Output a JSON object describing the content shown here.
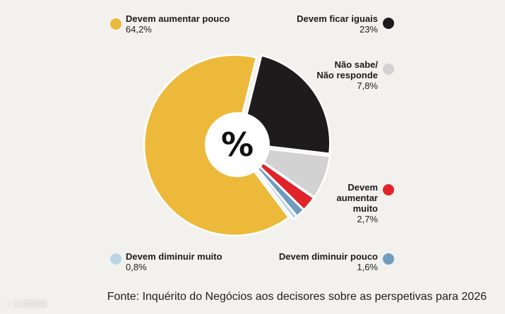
{
  "chart_data": {
    "type": "pie",
    "center_label": "%",
    "slices": [
      {
        "name": "Devem aumentar pouco",
        "value": 64.2,
        "value_text": "64,2%",
        "color": "#ecb93a"
      },
      {
        "name": "Devem ficar iguais",
        "value": 23,
        "value_text": "23%",
        "color": "#1d1b1b"
      },
      {
        "name": "Não sabe/ Não responde",
        "value": 7.8,
        "value_text": "7,8%",
        "color": "#d2d2d2"
      },
      {
        "name": "Devem aumentar muito",
        "value": 2.7,
        "value_text": "2,7%",
        "color": "#e1242b"
      },
      {
        "name": "Devem diminuir pouco",
        "value": 1.6,
        "value_text": "1,6%",
        "color": "#6f9cbd"
      },
      {
        "name": "Devem diminuir muito",
        "value": 0.8,
        "value_text": "0,8%",
        "color": "#b9d6e8"
      }
    ],
    "source": "Fonte: Inquérito do Negócios aos decisores sobre as perspetivas para 2026"
  },
  "legend": {
    "aumentar_pouco": {
      "label": "Devem aumentar pouco",
      "value": "64,2%"
    },
    "ficar_iguais": {
      "label": "Devem ficar iguais",
      "value": "23%"
    },
    "nao_sabe": {
      "label_line1": "Não sabe/",
      "label_line2": "Não responde",
      "value": "7,8%"
    },
    "aumentar_muito": {
      "label_line1": "Devem",
      "label_line2": "aumentar",
      "label_line3": "muito",
      "value": "2,7%"
    },
    "diminuir_muito": {
      "label": "Devem diminuir muito",
      "value": "0,8%"
    },
    "diminuir_pouco": {
      "label": "Devem diminuir pouco",
      "value": "1,6%"
    }
  },
  "watermark": "大数跨境"
}
